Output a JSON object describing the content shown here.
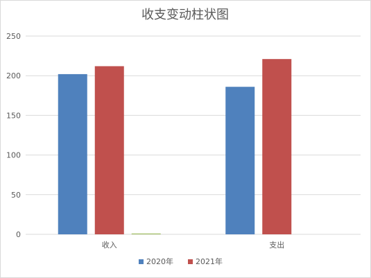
{
  "chart_data": {
    "type": "bar",
    "title": "收支变动柱状图",
    "xlabel": "",
    "ylabel": "",
    "categories": [
      "收入",
      "支出"
    ],
    "series": [
      {
        "name": "2020年",
        "color": "#4f81bd",
        "values": [
          202,
          186
        ]
      },
      {
        "name": "2021年",
        "color": "#c0504d",
        "values": [
          212,
          221
        ]
      },
      {
        "name": "",
        "color": "#9bbb59",
        "values": [
          1,
          0
        ]
      }
    ],
    "ylim": [
      0,
      250
    ],
    "yticks": [
      0,
      50,
      100,
      150,
      200,
      250
    ],
    "grid": true,
    "legend_position": "bottom",
    "legend_series": [
      0,
      1
    ]
  }
}
